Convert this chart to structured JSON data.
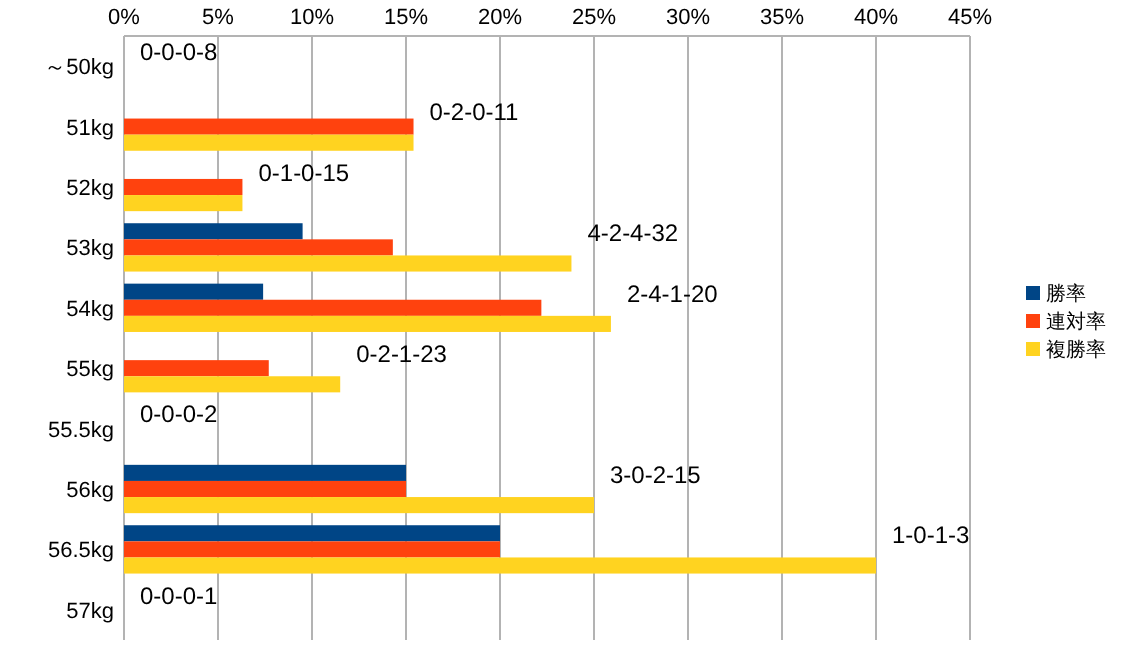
{
  "chart_data": {
    "type": "bar",
    "orientation": "horizontal",
    "categories": [
      "～50kg",
      "51kg",
      "52kg",
      "53kg",
      "54kg",
      "55kg",
      "55.5kg",
      "56kg",
      "56.5kg",
      "57kg"
    ],
    "series": [
      {
        "name": "勝率",
        "color": "#004586",
        "values": [
          0,
          0,
          0,
          9.5,
          7.4,
          0,
          0,
          15,
          20,
          0
        ]
      },
      {
        "name": "連対率",
        "color": "#ff420e",
        "values": [
          0,
          15.4,
          6.3,
          14.3,
          22.2,
          7.7,
          0,
          15,
          20,
          0
        ]
      },
      {
        "name": "複勝率",
        "color": "#ffd320",
        "values": [
          0,
          15.4,
          6.3,
          23.8,
          25.9,
          11.5,
          0,
          25,
          40,
          0
        ]
      }
    ],
    "annotations": [
      {
        "text": "0-0-0-8",
        "x": 0,
        "y": "～50kg"
      },
      {
        "text": "0-2-0-11",
        "x": 15.4,
        "y": "51kg"
      },
      {
        "text": "0-1-0-15",
        "x": 6.3,
        "y": "52kg"
      },
      {
        "text": "4-2-4-32",
        "x": 23.8,
        "y": "53kg"
      },
      {
        "text": "2-4-1-20",
        "x": 25.9,
        "y": "54kg"
      },
      {
        "text": "0-2-1-23",
        "x": 11.5,
        "y": "55kg"
      },
      {
        "text": "0-0-0-2",
        "x": 0,
        "y": "55.5kg"
      },
      {
        "text": "3-0-2-15",
        "x": 25,
        "y": "56kg"
      },
      {
        "text": "1-0-1-3",
        "x": 40,
        "y": "56.5kg"
      },
      {
        "text": "0-0-0-1",
        "x": 0,
        "y": "57kg"
      }
    ],
    "xlim": [
      0,
      45
    ],
    "xticks": [
      {
        "value": 0,
        "label": "0%"
      },
      {
        "value": 5,
        "label": "5%"
      },
      {
        "value": 10,
        "label": "10%"
      },
      {
        "value": 15,
        "label": "15%"
      },
      {
        "value": 20,
        "label": "20%"
      },
      {
        "value": 25,
        "label": "25%"
      },
      {
        "value": 30,
        "label": "30%"
      },
      {
        "value": 35,
        "label": "35%"
      },
      {
        "value": 40,
        "label": "40%"
      },
      {
        "value": 45,
        "label": "45%"
      }
    ],
    "grid": "x",
    "legend": "right"
  }
}
